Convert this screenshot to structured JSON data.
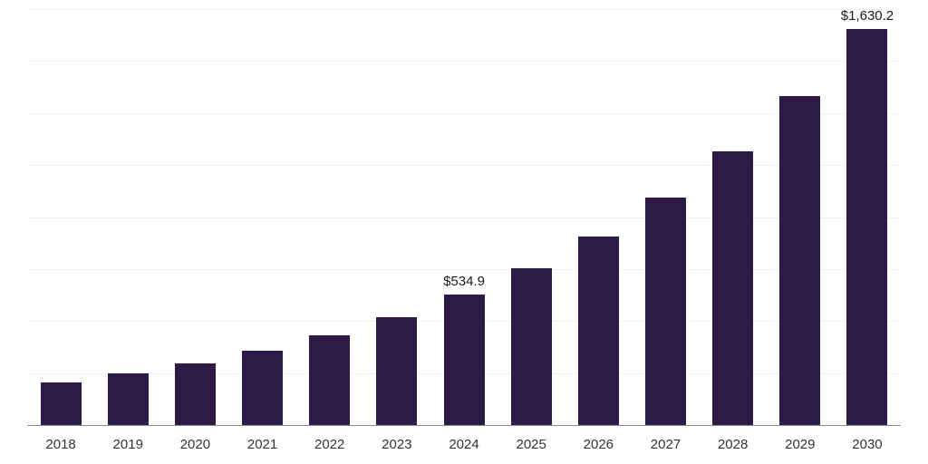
{
  "chart_data": {
    "type": "bar",
    "title": "",
    "xlabel": "",
    "ylabel": "",
    "categories": [
      "2018",
      "2019",
      "2020",
      "2021",
      "2022",
      "2023",
      "2024",
      "2025",
      "2026",
      "2027",
      "2028",
      "2029",
      "2030"
    ],
    "values": [
      175.5,
      211.3,
      254.4,
      306.4,
      368.9,
      444.2,
      534.9,
      644.1,
      775.6,
      933.9,
      1124.5,
      1354.0,
      1630.2
    ],
    "value_labels": {
      "2024": "$534.9",
      "2030": "$1,630.2"
    },
    "ylim": [
      0,
      1710
    ],
    "grid": true,
    "gridline_count": 8,
    "legend_position": "none",
    "bar_color": "#2e1a47",
    "axis_line_color": "#8c8c8c",
    "gridline_color": "#f1f1f4",
    "value_label_color": "#1a1a1a",
    "tick_label_color": "#333333",
    "background_color": "#ffffff"
  }
}
